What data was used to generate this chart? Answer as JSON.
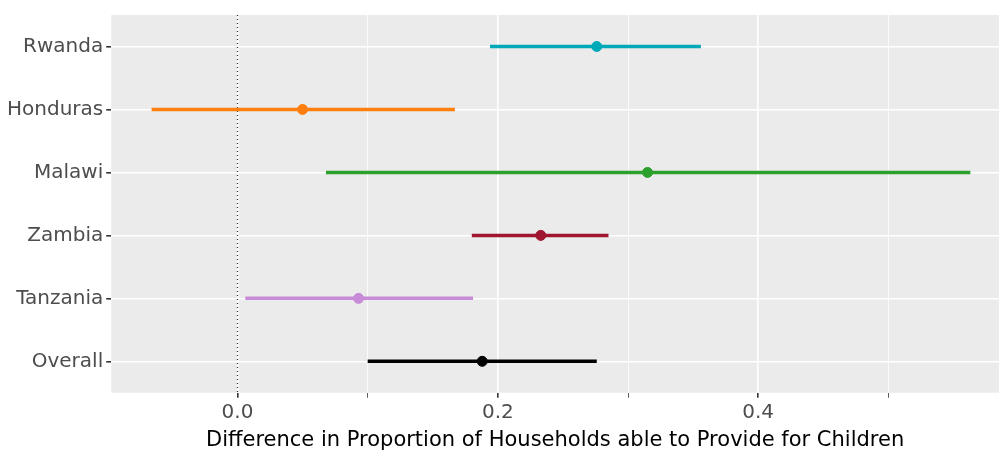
{
  "chart_data": {
    "type": "scatter",
    "orientation": "horizontal",
    "xlabel": "Difference in Proportion of Households able to Provide for Children",
    "categories": [
      "Rwanda",
      "Honduras",
      "Malawi",
      "Zambia",
      "Tanzania",
      "Overall"
    ],
    "values": [
      0.276,
      0.05,
      0.315,
      0.233,
      0.093,
      0.188
    ],
    "errors": [
      [
        0.194,
        0.356
      ],
      [
        -0.066,
        0.167
      ],
      [
        0.068,
        0.563
      ],
      [
        0.18,
        0.285
      ],
      [
        0.006,
        0.181
      ],
      [
        0.1,
        0.276
      ]
    ],
    "colors": [
      "#00a9b8",
      "#ff7f0e",
      "#2ca02c",
      "#a0162f",
      "#c88bd8",
      "#000000"
    ],
    "xlim": [
      -0.097,
      0.585
    ],
    "xticks": [
      {
        "value": 0,
        "label": "0.0"
      },
      0.2,
      0.4,
      {
        "value": 0.1,
        "label": null
      },
      {
        "value": 0.3,
        "label": null
      },
      {
        "value": 0.5,
        "label": null
      }
    ],
    "ref_lines": [
      {
        "axis": "x",
        "value": 0,
        "line_style": "dotted",
        "color": "#333333"
      }
    ],
    "marker": "circle",
    "grid": true,
    "legend": false
  }
}
